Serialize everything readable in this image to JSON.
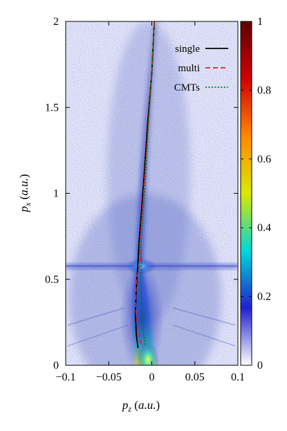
{
  "chart_data": {
    "type": "heatmap",
    "xlabel": "p_z (a.u.)",
    "ylabel": "p_x (a.u.)",
    "xlim": [
      -0.1,
      0.1
    ],
    "ylim": [
      0,
      2
    ],
    "x_ticks": [
      -0.1,
      -0.05,
      0,
      0.05,
      0.1
    ],
    "x_tick_labels": [
      "−0.1",
      "−0.05",
      "0",
      "0.05",
      "0.1"
    ],
    "y_ticks": [
      0,
      0.5,
      1,
      1.5,
      2
    ],
    "y_tick_labels": [
      "0",
      "0.5",
      "1",
      "1.5",
      "2"
    ],
    "colorbar": {
      "range": [
        0,
        1
      ],
      "ticks": [
        0,
        0.2,
        0.4,
        0.6,
        0.8,
        1
      ],
      "tick_labels": [
        "0",
        "0.2",
        "0.4",
        "0.6",
        "0.8",
        "1"
      ],
      "colors": [
        "#ffffff",
        "#2020d0",
        "#00d8d8",
        "#d8e800",
        "#ff8800",
        "#d00000",
        "#600000"
      ]
    },
    "legend_position": "top-right",
    "series": [
      {
        "name": "single",
        "color": "#000000",
        "style": "solid",
        "points": [
          [
            -0.016,
            0.1
          ],
          [
            -0.018,
            0.18
          ],
          [
            -0.019,
            0.3
          ],
          [
            -0.018,
            0.45
          ],
          [
            -0.016,
            0.6
          ],
          [
            -0.015,
            0.7
          ],
          [
            -0.012,
            0.9
          ],
          [
            -0.009,
            1.1
          ],
          [
            -0.005,
            1.4
          ],
          [
            0.0,
            1.7
          ],
          [
            0.003,
            2.0
          ]
        ]
      },
      {
        "name": "multi",
        "color": "#e02020",
        "style": "dashed",
        "points": [
          [
            -0.012,
            0.12
          ],
          [
            -0.016,
            0.2
          ],
          [
            -0.019,
            0.35
          ],
          [
            -0.018,
            0.5
          ],
          [
            -0.013,
            0.6
          ],
          [
            -0.014,
            0.7
          ],
          [
            -0.011,
            0.9
          ],
          [
            -0.008,
            1.1
          ],
          [
            -0.004,
            1.4
          ],
          [
            0.0,
            1.7
          ],
          [
            0.003,
            2.0
          ]
        ]
      },
      {
        "name": "CMTs",
        "color": "#008000",
        "style": "dotted",
        "points": [
          [
            -0.008,
            0.12
          ],
          [
            -0.01,
            0.2
          ],
          [
            -0.012,
            0.35
          ],
          [
            -0.013,
            0.5
          ],
          [
            -0.012,
            0.6
          ],
          [
            -0.013,
            0.7
          ],
          [
            -0.01,
            0.9
          ],
          [
            -0.007,
            1.1
          ],
          [
            -0.004,
            1.4
          ],
          [
            0.0,
            1.7
          ],
          [
            0.003,
            2.0
          ]
        ]
      }
    ]
  }
}
